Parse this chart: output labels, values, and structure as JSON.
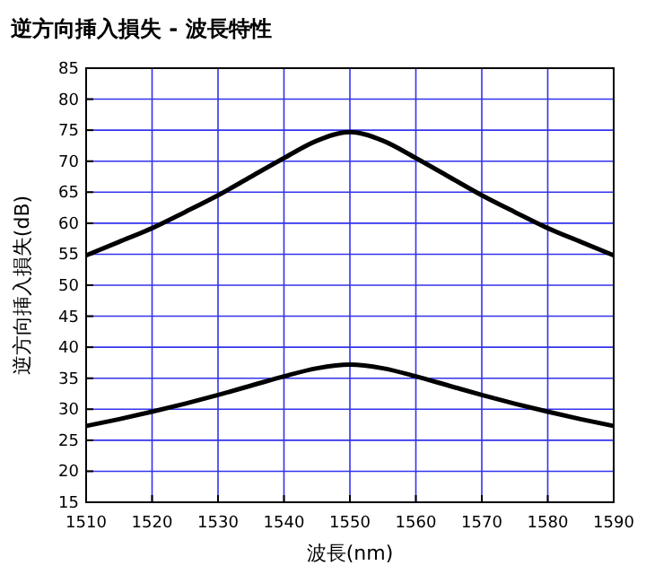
{
  "chart_data": {
    "type": "line",
    "title": "逆方向挿入損失 - 波長特性",
    "xlabel": "波長(nm)",
    "ylabel": "逆方向挿入損失(dB)",
    "x": [
      1510,
      1515,
      1520,
      1525,
      1530,
      1535,
      1540,
      1545,
      1550,
      1555,
      1560,
      1565,
      1570,
      1575,
      1580,
      1585,
      1590
    ],
    "series": [
      {
        "color": "#000000",
        "values": [
          54.8,
          57,
          59.2,
          61.8,
          64.5,
          67.5,
          70.5,
          73.3,
          74.7,
          73.3,
          70.5,
          67.5,
          64.5,
          61.8,
          59.2,
          57,
          54.8
        ]
      },
      {
        "color": "#000000",
        "values": [
          27.3,
          28.4,
          29.6,
          30.9,
          32.3,
          33.8,
          35.3,
          36.6,
          37.2,
          36.6,
          35.3,
          33.8,
          32.3,
          30.9,
          29.6,
          28.4,
          27.3
        ]
      }
    ],
    "xlim": [
      1510,
      1590
    ],
    "xticks": [
      1510,
      1520,
      1530,
      1540,
      1550,
      1560,
      1570,
      1580,
      1590
    ],
    "ylim": [
      15,
      85
    ],
    "yticks": [
      15,
      20,
      25,
      30,
      35,
      40,
      45,
      50,
      55,
      60,
      65,
      70,
      75,
      80,
      85
    ],
    "grid": true,
    "marker": "none",
    "line_style": "solid"
  }
}
